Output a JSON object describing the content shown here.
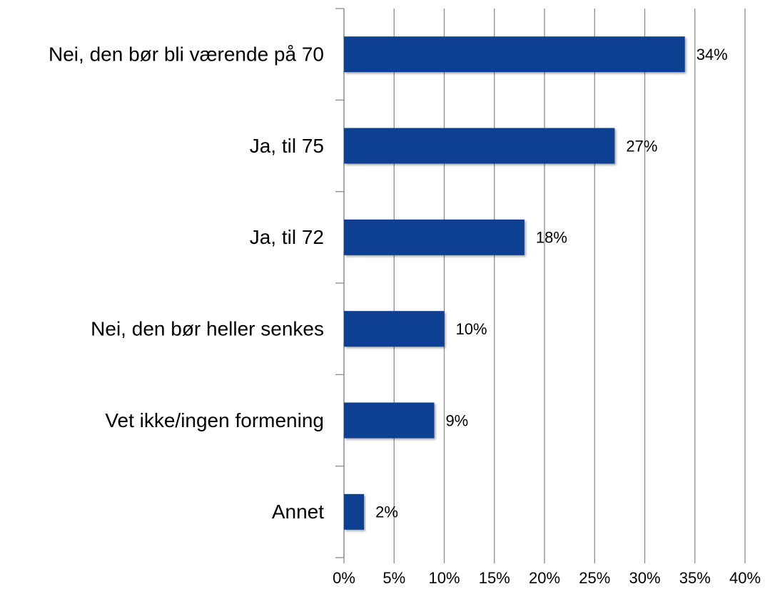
{
  "chart_data": {
    "type": "hbar",
    "categories": [
      "Nei, den bør bli værende på 70",
      "Ja, til 75",
      "Ja, til 72",
      "Nei, den bør heller senkes",
      "Vet ikke/ingen formening",
      "Annet"
    ],
    "values": [
      34,
      27,
      18,
      10,
      9,
      2
    ],
    "value_labels": [
      "34%",
      "27%",
      "18%",
      "10%",
      "9%",
      "2%"
    ],
    "color": "#0e3f91",
    "xlim": [
      0,
      40
    ],
    "xticks": [
      {
        "value": 0,
        "label": "0%"
      },
      {
        "value": 5,
        "label": "5%"
      },
      {
        "value": 10,
        "label": "10%"
      },
      {
        "value": 15,
        "label": "15%"
      },
      {
        "value": 20,
        "label": "20%"
      },
      {
        "value": 25,
        "label": "25%"
      },
      {
        "value": 30,
        "label": "30%"
      },
      {
        "value": 35,
        "label": "35%"
      },
      {
        "value": 40,
        "label": "40%"
      }
    ],
    "grid": true
  }
}
